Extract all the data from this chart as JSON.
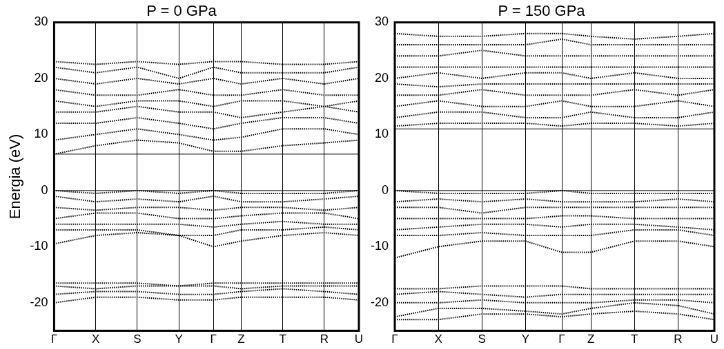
{
  "chart_data": [
    {
      "type": "line",
      "title": "P = 0 GPa",
      "ylabel": "Energia (eV)",
      "categories": [
        "Γ",
        null,
        null,
        null,
        null,
        null,
        "X",
        null,
        null,
        null,
        null,
        null,
        "S",
        null,
        null,
        null,
        null,
        null,
        "Y",
        null,
        null,
        null,
        null,
        "Γ",
        null,
        null,
        null,
        "Z",
        null,
        null,
        null,
        null,
        null,
        "T",
        null,
        null,
        null,
        null,
        null,
        "R",
        null,
        null,
        null,
        null,
        "U"
      ],
      "ylim": [
        -25,
        30
      ],
      "yticks": [
        -20,
        -10,
        0,
        10,
        20,
        30
      ],
      "grid": "x",
      "legend": false,
      "marker": "none",
      "line_style": "dotted",
      "ref_lines": [
        {
          "axis": "y",
          "value": 0,
          "color": "#000000",
          "line_style": "solid"
        },
        {
          "axis": "y",
          "value": 6.5,
          "color": "#000000",
          "line_style": "solid"
        }
      ],
      "series": [
        {
          "color": "#000000",
          "values": [
            6.5,
            null,
            null,
            null,
            null,
            null,
            8,
            null,
            null,
            null,
            null,
            null,
            9,
            null,
            null,
            null,
            null,
            null,
            8.5,
            null,
            null,
            null,
            null,
            7,
            null,
            null,
            null,
            7,
            null,
            null,
            null,
            null,
            null,
            8,
            null,
            null,
            null,
            null,
            null,
            8.5,
            null,
            null,
            null,
            null,
            9
          ]
        },
        {
          "color": "#000000",
          "values": [
            9,
            null,
            null,
            null,
            null,
            null,
            10,
            null,
            null,
            null,
            null,
            null,
            11,
            null,
            null,
            null,
            null,
            null,
            10,
            null,
            null,
            null,
            null,
            9,
            null,
            null,
            null,
            9.5,
            null,
            null,
            null,
            null,
            null,
            11,
            null,
            null,
            null,
            null,
            null,
            11,
            null,
            null,
            null,
            null,
            10
          ]
        },
        {
          "color": "#000000",
          "values": [
            12,
            null,
            null,
            null,
            null,
            null,
            12,
            null,
            null,
            null,
            null,
            null,
            13,
            null,
            null,
            null,
            null,
            null,
            12,
            null,
            null,
            null,
            null,
            11,
            null,
            null,
            null,
            12,
            null,
            null,
            null,
            null,
            null,
            13,
            null,
            null,
            null,
            null,
            null,
            13,
            null,
            null,
            null,
            null,
            12
          ]
        },
        {
          "color": "#000000",
          "values": [
            14,
            null,
            null,
            null,
            null,
            null,
            14,
            null,
            null,
            null,
            null,
            null,
            15,
            null,
            null,
            null,
            null,
            null,
            14,
            null,
            null,
            null,
            null,
            14,
            null,
            null,
            null,
            13,
            null,
            null,
            null,
            null,
            null,
            14,
            null,
            null,
            null,
            null,
            null,
            15,
            null,
            null,
            null,
            null,
            14
          ]
        },
        {
          "color": "#000000",
          "values": [
            16,
            null,
            null,
            null,
            null,
            null,
            15,
            null,
            null,
            null,
            null,
            null,
            16,
            null,
            null,
            null,
            null,
            null,
            16,
            null,
            null,
            null,
            null,
            15,
            null,
            null,
            null,
            16,
            null,
            null,
            null,
            null,
            null,
            16,
            null,
            null,
            null,
            null,
            null,
            15,
            null,
            null,
            null,
            null,
            16
          ]
        },
        {
          "color": "#000000",
          "values": [
            18,
            null,
            null,
            null,
            null,
            null,
            17,
            null,
            null,
            null,
            null,
            null,
            17,
            null,
            null,
            null,
            null,
            null,
            18,
            null,
            null,
            null,
            null,
            17,
            null,
            null,
            null,
            17,
            null,
            null,
            null,
            null,
            null,
            18,
            null,
            null,
            null,
            null,
            null,
            17,
            null,
            null,
            null,
            null,
            17
          ]
        },
        {
          "color": "#000000",
          "values": [
            20,
            null,
            null,
            null,
            null,
            null,
            19,
            null,
            null,
            null,
            null,
            null,
            20,
            null,
            null,
            null,
            null,
            null,
            19,
            null,
            null,
            null,
            null,
            20,
            null,
            null,
            null,
            19,
            null,
            null,
            null,
            null,
            null,
            20,
            null,
            null,
            null,
            null,
            null,
            19,
            null,
            null,
            null,
            null,
            20
          ]
        },
        {
          "color": "#000000",
          "values": [
            22,
            null,
            null,
            null,
            null,
            null,
            21,
            null,
            null,
            null,
            null,
            null,
            22,
            null,
            null,
            null,
            null,
            null,
            20,
            null,
            null,
            null,
            null,
            22,
            null,
            null,
            null,
            21,
            null,
            null,
            null,
            null,
            null,
            21,
            null,
            null,
            null,
            null,
            null,
            21,
            null,
            null,
            null,
            null,
            22
          ]
        },
        {
          "color": "#000000",
          "values": [
            23,
            null,
            null,
            null,
            null,
            null,
            22.5,
            null,
            null,
            null,
            null,
            null,
            23,
            null,
            null,
            null,
            null,
            null,
            22.5,
            null,
            null,
            null,
            null,
            23,
            null,
            null,
            null,
            23,
            null,
            null,
            null,
            null,
            null,
            22.5,
            null,
            null,
            null,
            null,
            null,
            22.5,
            null,
            null,
            null,
            null,
            23
          ]
        },
        {
          "color": "#000000",
          "values": [
            0,
            null,
            null,
            null,
            null,
            null,
            -0.5,
            null,
            null,
            null,
            null,
            null,
            0,
            null,
            null,
            null,
            null,
            null,
            -0.5,
            null,
            null,
            null,
            null,
            0,
            null,
            null,
            null,
            -0.5,
            null,
            null,
            null,
            null,
            null,
            -0.5,
            null,
            null,
            null,
            null,
            null,
            -0.5,
            null,
            null,
            null,
            null,
            0
          ]
        },
        {
          "color": "#000000",
          "values": [
            -1,
            null,
            null,
            null,
            null,
            null,
            -2,
            null,
            null,
            null,
            null,
            null,
            -1.5,
            null,
            null,
            null,
            null,
            null,
            -2,
            null,
            null,
            null,
            null,
            -1,
            null,
            null,
            null,
            -2,
            null,
            null,
            null,
            null,
            null,
            -2,
            null,
            null,
            null,
            null,
            null,
            -1.5,
            null,
            null,
            null,
            null,
            -1
          ]
        },
        {
          "color": "#000000",
          "values": [
            -3,
            null,
            null,
            null,
            null,
            null,
            -3.5,
            null,
            null,
            null,
            null,
            null,
            -3,
            null,
            null,
            null,
            null,
            null,
            -3,
            null,
            null,
            null,
            null,
            -3.5,
            null,
            null,
            null,
            -3,
            null,
            null,
            null,
            null,
            null,
            -3,
            null,
            null,
            null,
            null,
            null,
            -3.5,
            null,
            null,
            null,
            null,
            -3
          ]
        },
        {
          "color": "#000000",
          "values": [
            -5,
            null,
            null,
            null,
            null,
            null,
            -4,
            null,
            null,
            null,
            null,
            null,
            -4,
            null,
            null,
            null,
            null,
            null,
            -5,
            null,
            null,
            null,
            null,
            -5,
            null,
            null,
            null,
            -4.5,
            null,
            null,
            null,
            null,
            null,
            -4,
            null,
            null,
            null,
            null,
            null,
            -4,
            null,
            null,
            null,
            null,
            -5
          ]
        },
        {
          "color": "#000000",
          "values": [
            -6,
            null,
            null,
            null,
            null,
            null,
            -6,
            null,
            null,
            null,
            null,
            null,
            -6,
            null,
            null,
            null,
            null,
            null,
            -6,
            null,
            null,
            null,
            null,
            -6.5,
            null,
            null,
            null,
            -6,
            null,
            null,
            null,
            null,
            null,
            -5.5,
            null,
            null,
            null,
            null,
            null,
            -6,
            null,
            null,
            null,
            null,
            -6
          ]
        },
        {
          "color": "#000000",
          "values": [
            -7,
            null,
            null,
            null,
            null,
            null,
            -7,
            null,
            null,
            null,
            null,
            null,
            -7,
            null,
            null,
            null,
            null,
            null,
            -8,
            null,
            null,
            null,
            null,
            -8,
            null,
            null,
            null,
            -7,
            null,
            null,
            null,
            null,
            null,
            -7,
            null,
            null,
            null,
            null,
            null,
            -6.5,
            null,
            null,
            null,
            null,
            -7
          ]
        },
        {
          "color": "#000000",
          "values": [
            -9.5,
            null,
            null,
            null,
            null,
            null,
            -8,
            null,
            null,
            null,
            null,
            null,
            -7.5,
            null,
            null,
            null,
            null,
            null,
            -8,
            null,
            null,
            null,
            null,
            -10,
            null,
            null,
            null,
            -9,
            null,
            null,
            null,
            null,
            null,
            -8,
            null,
            null,
            null,
            null,
            null,
            -7.5,
            null,
            null,
            null,
            null,
            -8
          ]
        },
        {
          "color": "#000000",
          "values": [
            -16.5,
            null,
            null,
            null,
            null,
            null,
            -16.5,
            null,
            null,
            null,
            null,
            null,
            -16.5,
            null,
            null,
            null,
            null,
            null,
            -17,
            null,
            null,
            null,
            null,
            -16.5,
            null,
            null,
            null,
            -16.5,
            null,
            null,
            null,
            null,
            null,
            -16.5,
            null,
            null,
            null,
            null,
            null,
            -16.5,
            null,
            null,
            null,
            null,
            -16.5
          ]
        },
        {
          "color": "#000000",
          "values": [
            -17,
            null,
            null,
            null,
            null,
            null,
            -17.5,
            null,
            null,
            null,
            null,
            null,
            -17,
            null,
            null,
            null,
            null,
            null,
            -17,
            null,
            null,
            null,
            null,
            -17,
            null,
            null,
            null,
            -17.5,
            null,
            null,
            null,
            null,
            null,
            -17,
            null,
            null,
            null,
            null,
            null,
            -17,
            null,
            null,
            null,
            null,
            -17
          ]
        },
        {
          "color": "#000000",
          "values": [
            -18.5,
            null,
            null,
            null,
            null,
            null,
            -18,
            null,
            null,
            null,
            null,
            null,
            -18,
            null,
            null,
            null,
            null,
            null,
            -18.5,
            null,
            null,
            null,
            null,
            -18.5,
            null,
            null,
            null,
            -18,
            null,
            null,
            null,
            null,
            null,
            -17.5,
            null,
            null,
            null,
            null,
            null,
            -18,
            null,
            null,
            null,
            null,
            -18.5
          ]
        },
        {
          "color": "#000000",
          "values": [
            -20,
            null,
            null,
            null,
            null,
            null,
            -19,
            null,
            null,
            null,
            null,
            null,
            -19,
            null,
            null,
            null,
            null,
            null,
            -19.5,
            null,
            null,
            null,
            null,
            -19.5,
            null,
            null,
            null,
            -19,
            null,
            null,
            null,
            null,
            null,
            -19,
            null,
            null,
            null,
            null,
            null,
            -19,
            null,
            null,
            null,
            null,
            -19.5
          ]
        }
      ]
    },
    {
      "type": "line",
      "title": "P = 150 GPa",
      "categories": [
        "Γ",
        null,
        null,
        null,
        null,
        null,
        "X",
        null,
        null,
        null,
        null,
        null,
        "S",
        null,
        null,
        null,
        null,
        null,
        "Y",
        null,
        null,
        null,
        null,
        "Γ",
        null,
        null,
        null,
        "Z",
        null,
        null,
        null,
        null,
        null,
        "T",
        null,
        null,
        null,
        null,
        null,
        "R",
        null,
        null,
        null,
        null,
        "U"
      ],
      "ylim": [
        -25,
        30
      ],
      "yticks": [
        -20,
        -10,
        0,
        10,
        20,
        30
      ],
      "grid": "x",
      "legend": false,
      "marker": "none",
      "line_style": "dotted",
      "ref_lines": [
        {
          "axis": "y",
          "value": 0,
          "color": "#000000",
          "line_style": "solid"
        },
        {
          "axis": "y",
          "value": 11,
          "color": "#000000",
          "line_style": "solid"
        }
      ],
      "series": [
        {
          "color": "#000000",
          "values": [
            11.5,
            null,
            null,
            null,
            null,
            null,
            12,
            null,
            null,
            null,
            null,
            null,
            12,
            null,
            null,
            null,
            null,
            null,
            12,
            null,
            null,
            null,
            null,
            11.5,
            null,
            null,
            null,
            12,
            null,
            null,
            null,
            null,
            null,
            12,
            null,
            null,
            null,
            null,
            null,
            11.5,
            null,
            null,
            null,
            null,
            12
          ]
        },
        {
          "color": "#000000",
          "values": [
            13,
            null,
            null,
            null,
            null,
            null,
            14,
            null,
            null,
            null,
            null,
            null,
            14,
            null,
            null,
            null,
            null,
            null,
            13,
            null,
            null,
            null,
            null,
            13,
            null,
            null,
            null,
            14,
            null,
            null,
            null,
            null,
            null,
            13,
            null,
            null,
            null,
            null,
            null,
            13,
            null,
            null,
            null,
            null,
            14
          ]
        },
        {
          "color": "#000000",
          "values": [
            15,
            null,
            null,
            null,
            null,
            null,
            16,
            null,
            null,
            null,
            null,
            null,
            15,
            null,
            null,
            null,
            null,
            null,
            15,
            null,
            null,
            null,
            null,
            16,
            null,
            null,
            null,
            15,
            null,
            null,
            null,
            null,
            null,
            15,
            null,
            null,
            null,
            null,
            null,
            16,
            null,
            null,
            null,
            null,
            15
          ]
        },
        {
          "color": "#000000",
          "values": [
            17,
            null,
            null,
            null,
            null,
            null,
            17,
            null,
            null,
            null,
            null,
            null,
            18,
            null,
            null,
            null,
            null,
            null,
            17,
            null,
            null,
            null,
            null,
            17,
            null,
            null,
            null,
            17,
            null,
            null,
            null,
            null,
            null,
            18,
            null,
            null,
            null,
            null,
            null,
            17,
            null,
            null,
            null,
            null,
            18
          ]
        },
        {
          "color": "#000000",
          "values": [
            19,
            null,
            null,
            null,
            null,
            null,
            18.5,
            null,
            null,
            null,
            null,
            null,
            19,
            null,
            null,
            null,
            null,
            null,
            19,
            null,
            null,
            null,
            null,
            19,
            null,
            null,
            null,
            19,
            null,
            null,
            null,
            null,
            null,
            19,
            null,
            null,
            null,
            null,
            null,
            19,
            null,
            null,
            null,
            null,
            19
          ]
        },
        {
          "color": "#000000",
          "values": [
            20,
            null,
            null,
            null,
            null,
            null,
            21,
            null,
            null,
            null,
            null,
            null,
            20,
            null,
            null,
            null,
            null,
            null,
            21,
            null,
            null,
            null,
            null,
            21,
            null,
            null,
            null,
            20,
            null,
            null,
            null,
            null,
            null,
            21,
            null,
            null,
            null,
            null,
            null,
            20,
            null,
            null,
            null,
            null,
            20
          ]
        },
        {
          "color": "#000000",
          "values": [
            22,
            null,
            null,
            null,
            null,
            null,
            22,
            null,
            null,
            null,
            null,
            null,
            22,
            null,
            null,
            null,
            null,
            null,
            22,
            null,
            null,
            null,
            null,
            22,
            null,
            null,
            null,
            22,
            null,
            null,
            null,
            null,
            null,
            22,
            null,
            null,
            null,
            null,
            null,
            22,
            null,
            null,
            null,
            null,
            22
          ]
        },
        {
          "color": "#000000",
          "values": [
            24,
            null,
            null,
            null,
            null,
            null,
            24,
            null,
            null,
            null,
            null,
            null,
            25,
            null,
            null,
            null,
            null,
            null,
            24,
            null,
            null,
            null,
            null,
            24,
            null,
            null,
            null,
            24,
            null,
            null,
            null,
            null,
            null,
            24,
            null,
            null,
            null,
            null,
            null,
            24,
            null,
            null,
            null,
            null,
            24
          ]
        },
        {
          "color": "#000000",
          "values": [
            26,
            null,
            null,
            null,
            null,
            null,
            26,
            null,
            null,
            null,
            null,
            null,
            26,
            null,
            null,
            null,
            null,
            null,
            26,
            null,
            null,
            null,
            null,
            27,
            null,
            null,
            null,
            26,
            null,
            null,
            null,
            null,
            null,
            26,
            null,
            null,
            null,
            null,
            null,
            26,
            null,
            null,
            null,
            null,
            26
          ]
        },
        {
          "color": "#000000",
          "values": [
            28,
            null,
            null,
            null,
            null,
            null,
            27.5,
            null,
            null,
            null,
            null,
            null,
            27.5,
            null,
            null,
            null,
            null,
            null,
            28,
            null,
            null,
            null,
            null,
            28,
            null,
            null,
            null,
            27.5,
            null,
            null,
            null,
            null,
            null,
            27,
            null,
            null,
            null,
            null,
            null,
            27.5,
            null,
            null,
            null,
            null,
            28
          ]
        },
        {
          "color": "#000000",
          "values": [
            0,
            null,
            null,
            null,
            null,
            null,
            -0.5,
            null,
            null,
            null,
            null,
            null,
            -0.5,
            null,
            null,
            null,
            null,
            null,
            -0.5,
            null,
            null,
            null,
            null,
            0,
            null,
            null,
            null,
            -0.5,
            null,
            null,
            null,
            null,
            null,
            -0.5,
            null,
            null,
            null,
            null,
            null,
            -0.5,
            null,
            null,
            null,
            null,
            -0.5
          ]
        },
        {
          "color": "#000000",
          "values": [
            -2,
            null,
            null,
            null,
            null,
            null,
            -1.5,
            null,
            null,
            null,
            null,
            null,
            -2,
            null,
            null,
            null,
            null,
            null,
            -1.5,
            null,
            null,
            null,
            null,
            -2,
            null,
            null,
            null,
            -2,
            null,
            null,
            null,
            null,
            null,
            -2,
            null,
            null,
            null,
            null,
            null,
            -1.5,
            null,
            null,
            null,
            null,
            -2
          ]
        },
        {
          "color": "#000000",
          "values": [
            -3,
            null,
            null,
            null,
            null,
            null,
            -3,
            null,
            null,
            null,
            null,
            null,
            -4,
            null,
            null,
            null,
            null,
            null,
            -3,
            null,
            null,
            null,
            null,
            -3,
            null,
            null,
            null,
            -3,
            null,
            null,
            null,
            null,
            null,
            -3,
            null,
            null,
            null,
            null,
            null,
            -3,
            null,
            null,
            null,
            null,
            -3
          ]
        },
        {
          "color": "#000000",
          "values": [
            -5,
            null,
            null,
            null,
            null,
            null,
            -5,
            null,
            null,
            null,
            null,
            null,
            -5,
            null,
            null,
            null,
            null,
            null,
            -5,
            null,
            null,
            null,
            null,
            -4.5,
            null,
            null,
            null,
            -4.5,
            null,
            null,
            null,
            null,
            null,
            -5,
            null,
            null,
            null,
            null,
            null,
            -5,
            null,
            null,
            null,
            null,
            -5
          ]
        },
        {
          "color": "#000000",
          "values": [
            -7,
            null,
            null,
            null,
            null,
            null,
            -6.5,
            null,
            null,
            null,
            null,
            null,
            -6,
            null,
            null,
            null,
            null,
            null,
            -6,
            null,
            null,
            null,
            null,
            -6.5,
            null,
            null,
            null,
            -6,
            null,
            null,
            null,
            null,
            null,
            -6,
            null,
            null,
            null,
            null,
            null,
            -6.5,
            null,
            null,
            null,
            null,
            -7
          ]
        },
        {
          "color": "#000000",
          "values": [
            -8,
            null,
            null,
            null,
            null,
            null,
            -8,
            null,
            null,
            null,
            null,
            null,
            -7.5,
            null,
            null,
            null,
            null,
            null,
            -8,
            null,
            null,
            null,
            null,
            -8,
            null,
            null,
            null,
            -8,
            null,
            null,
            null,
            null,
            null,
            -7,
            null,
            null,
            null,
            null,
            null,
            -7,
            null,
            null,
            null,
            null,
            -8
          ]
        },
        {
          "color": "#000000",
          "values": [
            -12,
            null,
            null,
            null,
            null,
            null,
            -10,
            null,
            null,
            null,
            null,
            null,
            -9,
            null,
            null,
            null,
            null,
            null,
            -9,
            null,
            null,
            null,
            null,
            -11,
            null,
            null,
            null,
            -11,
            null,
            null,
            null,
            null,
            null,
            -9,
            null,
            null,
            null,
            null,
            null,
            -9,
            null,
            null,
            null,
            null,
            -10
          ]
        },
        {
          "color": "#000000",
          "values": [
            -17.5,
            null,
            null,
            null,
            null,
            null,
            -17.5,
            null,
            null,
            null,
            null,
            null,
            -17,
            null,
            null,
            null,
            null,
            null,
            -17,
            null,
            null,
            null,
            null,
            -17,
            null,
            null,
            null,
            -17.5,
            null,
            null,
            null,
            null,
            null,
            -17.5,
            null,
            null,
            null,
            null,
            null,
            -17.5,
            null,
            null,
            null,
            null,
            -17.5
          ]
        },
        {
          "color": "#000000",
          "values": [
            -18.5,
            null,
            null,
            null,
            null,
            null,
            -18,
            null,
            null,
            null,
            null,
            null,
            -18.5,
            null,
            null,
            null,
            null,
            null,
            -19,
            null,
            null,
            null,
            null,
            -18.5,
            null,
            null,
            null,
            -18.5,
            null,
            null,
            null,
            null,
            null,
            -18.5,
            null,
            null,
            null,
            null,
            null,
            -18.5,
            null,
            null,
            null,
            null,
            -18.5
          ]
        },
        {
          "color": "#000000",
          "values": [
            -20,
            null,
            null,
            null,
            null,
            null,
            -20,
            null,
            null,
            null,
            null,
            null,
            -19.5,
            null,
            null,
            null,
            null,
            null,
            -20,
            null,
            null,
            null,
            null,
            -20,
            null,
            null,
            null,
            -20,
            null,
            null,
            null,
            null,
            null,
            -19.5,
            null,
            null,
            null,
            null,
            null,
            -19.5,
            null,
            null,
            null,
            null,
            -20
          ]
        },
        {
          "color": "#000000",
          "values": [
            -22.5,
            null,
            null,
            null,
            null,
            null,
            -21,
            null,
            null,
            null,
            null,
            null,
            -21,
            null,
            null,
            null,
            null,
            null,
            -21.5,
            null,
            null,
            null,
            null,
            -22,
            null,
            null,
            null,
            -21,
            null,
            null,
            null,
            null,
            null,
            -20,
            null,
            null,
            null,
            null,
            null,
            -20.5,
            null,
            null,
            null,
            null,
            -22
          ]
        },
        {
          "color": "#000000",
          "values": [
            -23,
            null,
            null,
            null,
            null,
            null,
            -23,
            null,
            null,
            null,
            null,
            null,
            -22,
            null,
            null,
            null,
            null,
            null,
            -22,
            null,
            null,
            null,
            null,
            -22.5,
            null,
            null,
            null,
            -22,
            null,
            null,
            null,
            null,
            null,
            -21.5,
            null,
            null,
            null,
            null,
            null,
            -22,
            null,
            null,
            null,
            null,
            -23
          ]
        }
      ]
    }
  ]
}
